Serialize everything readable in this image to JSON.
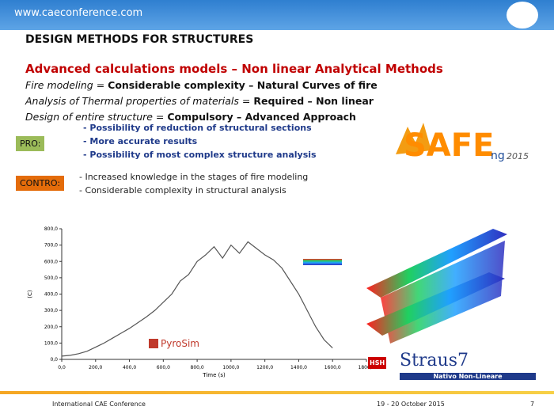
{
  "header": {
    "url": "www.caeconference.com"
  },
  "title": "DESIGN METHODS FOR STRUCTURES",
  "subtitle": "Advanced calculations models – Non linear Analytical Methods",
  "lines": [
    [
      {
        "text": "Fire modeling",
        "style": "italic"
      },
      {
        "text": " = ",
        "style": "normal"
      },
      {
        "text": "Considerable complexity  – Natural Curves of fire",
        "style": "bold"
      }
    ],
    [
      {
        "text": "Analysis of Thermal properties of materials",
        "style": "italic"
      },
      {
        "text": " = ",
        "style": "normal"
      },
      {
        "text": "Required – Non linear",
        "style": "bold"
      }
    ],
    [
      {
        "text": "Design of entire structure",
        "style": "italic"
      },
      {
        "text": " = ",
        "style": "normal"
      },
      {
        "text": "Compulsory – Advanced Approach",
        "style": "bold"
      }
    ]
  ],
  "pro": {
    "label": "PRO:",
    "items": [
      "- Possibility of reduction of structural sections",
      "- More accurate results",
      "- Possibility of most complex structure analysis"
    ]
  },
  "contro": {
    "label": "CONTRO:",
    "items": [
      "- Increased knowledge in the stages of fire modeling",
      "- Considerable complexity in structural analysis"
    ]
  },
  "logos": {
    "safe": "SAFE",
    "ng": "ng",
    "year": "2015",
    "pyrosim": "PyroSim",
    "hsh": "HSH",
    "straus": "Straus7",
    "straus_tag": "Nativo Non-Lineare"
  },
  "chart": {
    "type": "line",
    "x_label": "Time (s)",
    "y_label": "(C)",
    "color": "#555555",
    "x": [
      0,
      50,
      100,
      150,
      200,
      250,
      300,
      350,
      400,
      450,
      500,
      550,
      600,
      650,
      700,
      750,
      800,
      850,
      900,
      950,
      1000,
      1050,
      1100,
      1150,
      1200,
      1250,
      1300,
      1350,
      1400,
      1450,
      1500,
      1550,
      1600
    ],
    "values": [
      20,
      25,
      35,
      50,
      75,
      100,
      130,
      160,
      190,
      225,
      260,
      300,
      350,
      400,
      480,
      520,
      600,
      640,
      690,
      620,
      700,
      650,
      720,
      680,
      640,
      610,
      560,
      480,
      400,
      300,
      200,
      120,
      70
    ],
    "xlim": [
      0,
      1800
    ],
    "xticks": [
      {
        "value": 0,
        "label": "0,0"
      },
      {
        "value": 200,
        "label": "200,0"
      },
      {
        "value": 400,
        "label": "400,0"
      },
      {
        "value": 600,
        "label": "600,0"
      },
      {
        "value": 800,
        "label": "800,0"
      },
      {
        "value": 1000,
        "label": "1000,0"
      },
      {
        "value": 1200,
        "label": "1200,0"
      },
      {
        "value": 1400,
        "label": "1400,0"
      },
      {
        "value": 1600,
        "label": "1600,0"
      },
      {
        "value": 1800,
        "label": "1800,0"
      }
    ],
    "ylim": [
      0,
      800
    ],
    "yticks": [
      {
        "value": 0,
        "label": "0,0"
      },
      {
        "value": 100,
        "label": "100,0"
      },
      {
        "value": 200,
        "label": "200,0"
      },
      {
        "value": 300,
        "label": "300,0"
      },
      {
        "value": 400,
        "label": "400,0"
      },
      {
        "value": 500,
        "label": "500,0"
      },
      {
        "value": 600,
        "label": "600,0"
      },
      {
        "value": 700,
        "label": "700,0"
      },
      {
        "value": 800,
        "label": "800,0"
      }
    ]
  },
  "footer": {
    "left": "International CAE Conference",
    "date": "19 - 20 October 2015",
    "page": "7"
  }
}
